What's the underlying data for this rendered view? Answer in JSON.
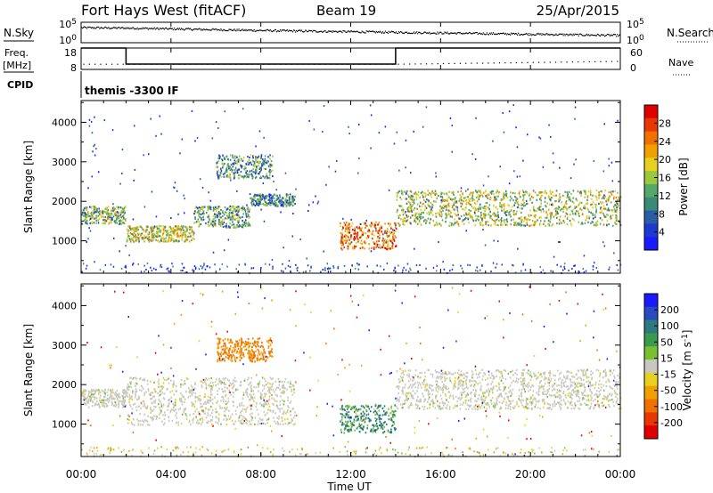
{
  "header": {
    "station": "Fort Hays West (fitACF)",
    "beam": "Beam 19",
    "date": "25/Apr/2015"
  },
  "top_panels": {
    "nsky_label": "N.Sky",
    "nsky_tick_top": "10^5",
    "nsky_tick_bottom": "10^0",
    "nsearch_label": "N.Search",
    "nsearch_tick_top": "10^5",
    "nsearch_tick_bottom": "10^0",
    "freq_label_1": "Freq.",
    "freq_label_2": "[MHz]",
    "freq_tick_top": "18",
    "freq_tick_bottom": "8",
    "nave_label": "Nave",
    "nave_tick_top": "60",
    "nave_tick_bottom": "0",
    "cpid_label": "CPID",
    "cpid_text": "themis -3300 IF"
  },
  "colors": {
    "power_scale": [
      "#1a1aff",
      "#1a3ad0",
      "#2a5ca8",
      "#3a8a78",
      "#55a868",
      "#9cc840",
      "#e8d020",
      "#f0a000",
      "#f07000",
      "#e83800",
      "#e00000"
    ],
    "velocity_scale": [
      "#1a1aff",
      "#2a4ac0",
      "#2a7a80",
      "#3a9a50",
      "#78c030",
      "#c8c8c0",
      "#e8d020",
      "#f0a000",
      "#f07000",
      "#e83800",
      "#e00000"
    ]
  },
  "chart_data": [
    {
      "type": "line",
      "title": "N.Sky / N.Search",
      "xlabel": "",
      "xlim": [
        "00:00",
        "24:00"
      ],
      "ylim_log10": [
        0,
        5
      ],
      "series": [
        {
          "name": "N.Sky",
          "x": [
            "00:00",
            "02:00",
            "04:00",
            "08:00",
            "12:00",
            "16:00",
            "20:00",
            "24:00"
          ],
          "y_log10": [
            3.8,
            3.7,
            3.5,
            3.1,
            2.8,
            2.5,
            2.2,
            1.9
          ]
        }
      ]
    },
    {
      "type": "line",
      "title": "Freq. [MHz] / Nave",
      "xlim": [
        "00:00",
        "24:00"
      ],
      "ylim_freq": [
        8,
        18
      ],
      "ylim_nave": [
        0,
        60
      ],
      "series": [
        {
          "name": "Freq.",
          "x": [
            "00:00",
            "02:00",
            "02:00",
            "14:00",
            "14:00",
            "24:00"
          ],
          "y": [
            18,
            18,
            10.5,
            10.5,
            18,
            18
          ]
        },
        {
          "name": "Nave",
          "x": [
            "00:00",
            "02:00",
            "14:00",
            "24:00"
          ],
          "y": [
            16,
            16,
            16,
            24
          ]
        }
      ]
    },
    {
      "type": "heatmap",
      "title": "",
      "xlabel": "",
      "ylabel": "Slant Range [km]",
      "xlim": [
        "00:00",
        "24:00"
      ],
      "ylim": [
        180,
        4550
      ],
      "y_ticks": [
        1000,
        2000,
        3000,
        4000
      ],
      "colorbar_label": "Power [dB]",
      "colorbar_ticks": [
        "4",
        "8",
        "12",
        "16",
        "20",
        "24",
        "28"
      ],
      "bands": [
        {
          "x_start": "00:00",
          "x_end": "02:00",
          "range_low": 1450,
          "range_high": 1900,
          "level": 0.45
        },
        {
          "x_start": "02:00",
          "x_end": "05:00",
          "range_low": 1000,
          "range_high": 1400,
          "level": 0.55
        },
        {
          "x_start": "05:00",
          "x_end": "07:30",
          "range_low": 1350,
          "range_high": 1900,
          "level": 0.4
        },
        {
          "x_start": "07:30",
          "x_end": "09:30",
          "range_low": 1900,
          "range_high": 2200,
          "level": 0.3
        },
        {
          "x_start": "06:00",
          "x_end": "08:30",
          "range_low": 2600,
          "range_high": 3200,
          "level": 0.35
        },
        {
          "x_start": "11:30",
          "x_end": "14:00",
          "range_low": 800,
          "range_high": 1500,
          "level": 0.75
        },
        {
          "x_start": "14:00",
          "x_end": "24:00",
          "range_low": 1400,
          "range_high": 2300,
          "level": 0.5
        }
      ]
    },
    {
      "type": "heatmap",
      "title": "",
      "xlabel": "Time UT",
      "ylabel": "Slant Range [km]",
      "xlim": [
        "00:00",
        "24:00"
      ],
      "ylim": [
        180,
        4550
      ],
      "x_ticks": [
        "00:00",
        "04:00",
        "08:00",
        "12:00",
        "16:00",
        "20:00",
        "00:00"
      ],
      "y_ticks": [
        1000,
        2000,
        3000,
        4000
      ],
      "colorbar_label": "Velocity [m s-1]",
      "colorbar_ticks": [
        "200",
        "100",
        "50",
        "15",
        "-15",
        "-50",
        "-100",
        "-200"
      ],
      "bands": [
        {
          "x_start": "00:00",
          "x_end": "02:00",
          "range_low": 1450,
          "range_high": 1900,
          "velocity": 0
        },
        {
          "x_start": "02:00",
          "x_end": "09:30",
          "range_low": 1000,
          "range_high": 2200,
          "velocity": 0
        },
        {
          "x_start": "06:00",
          "x_end": "08:30",
          "range_low": 2600,
          "range_high": 3200,
          "velocity": -80
        },
        {
          "x_start": "11:30",
          "x_end": "14:00",
          "range_low": 800,
          "range_high": 1500,
          "velocity": 40
        },
        {
          "x_start": "14:00",
          "x_end": "24:00",
          "range_low": 1400,
          "range_high": 2400,
          "velocity": 0
        }
      ]
    }
  ]
}
